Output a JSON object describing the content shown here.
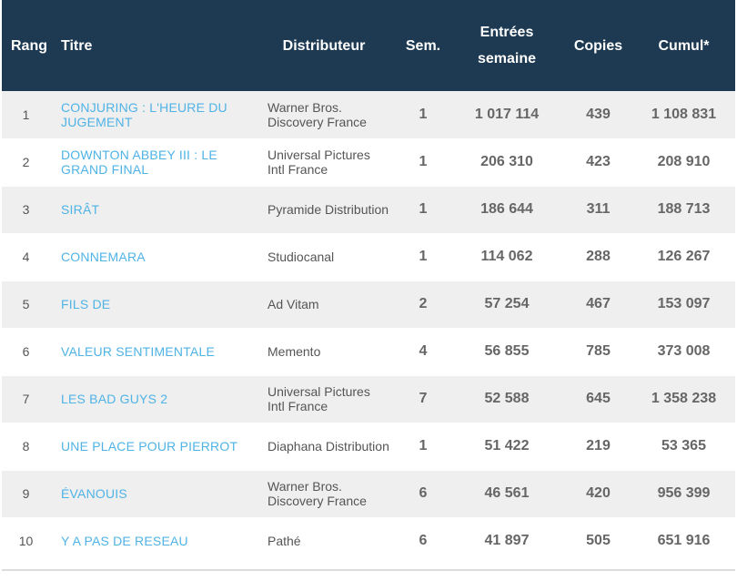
{
  "table": {
    "headers": {
      "rang": "Rang",
      "titre": "Titre",
      "distributeur": "Distributeur",
      "sem": "Sem.",
      "entrees_l1": "Entrées",
      "entrees_l2": "semaine",
      "copies": "Copies",
      "cumul": "Cumul*"
    },
    "rows": [
      {
        "rang": "1",
        "titre": "CONJURING : L'HEURE DU JUGEMENT",
        "distributeur": "Warner Bros. Discovery France",
        "sem": "1",
        "entrees": "1 017 114",
        "copies": "439",
        "cumul": "1 108 831"
      },
      {
        "rang": "2",
        "titre": "DOWNTON ABBEY III : LE GRAND FINAL",
        "distributeur": "Universal Pictures Intl France",
        "sem": "1",
        "entrees": "206 310",
        "copies": "423",
        "cumul": "208 910"
      },
      {
        "rang": "3",
        "titre": "SIRÂT",
        "distributeur": "Pyramide Distribution",
        "sem": "1",
        "entrees": "186 644",
        "copies": "311",
        "cumul": "188 713"
      },
      {
        "rang": "4",
        "titre": "CONNEMARA",
        "distributeur": "Studiocanal",
        "sem": "1",
        "entrees": "114 062",
        "copies": "288",
        "cumul": "126 267"
      },
      {
        "rang": "5",
        "titre": "FILS DE",
        "distributeur": "Ad Vitam",
        "sem": "2",
        "entrees": "57 254",
        "copies": "467",
        "cumul": "153 097"
      },
      {
        "rang": "6",
        "titre": "VALEUR SENTIMENTALE",
        "distributeur": "Memento",
        "sem": "4",
        "entrees": "56 855",
        "copies": "785",
        "cumul": "373 008"
      },
      {
        "rang": "7",
        "titre": "LES BAD GUYS 2",
        "distributeur": "Universal Pictures Intl France",
        "sem": "7",
        "entrees": "52 588",
        "copies": "645",
        "cumul": "1 358 238"
      },
      {
        "rang": "8",
        "titre": "UNE PLACE POUR PIERROT",
        "distributeur": "Diaphana Distribution",
        "sem": "1",
        "entrees": "51 422",
        "copies": "219",
        "cumul": "53 365"
      },
      {
        "rang": "9",
        "titre": "ÉVANOUIS",
        "distributeur": "Warner Bros. Discovery France",
        "sem": "6",
        "entrees": "46 561",
        "copies": "420",
        "cumul": "956 399"
      },
      {
        "rang": "10",
        "titre": "Y A PAS DE RESEAU",
        "distributeur": "Pathé",
        "sem": "6",
        "entrees": "41 897",
        "copies": "505",
        "cumul": "651 916"
      }
    ]
  },
  "colors": {
    "header_bg": "#1d3a52",
    "title_link": "#4fb3e6",
    "row_alt": "#efefef"
  }
}
